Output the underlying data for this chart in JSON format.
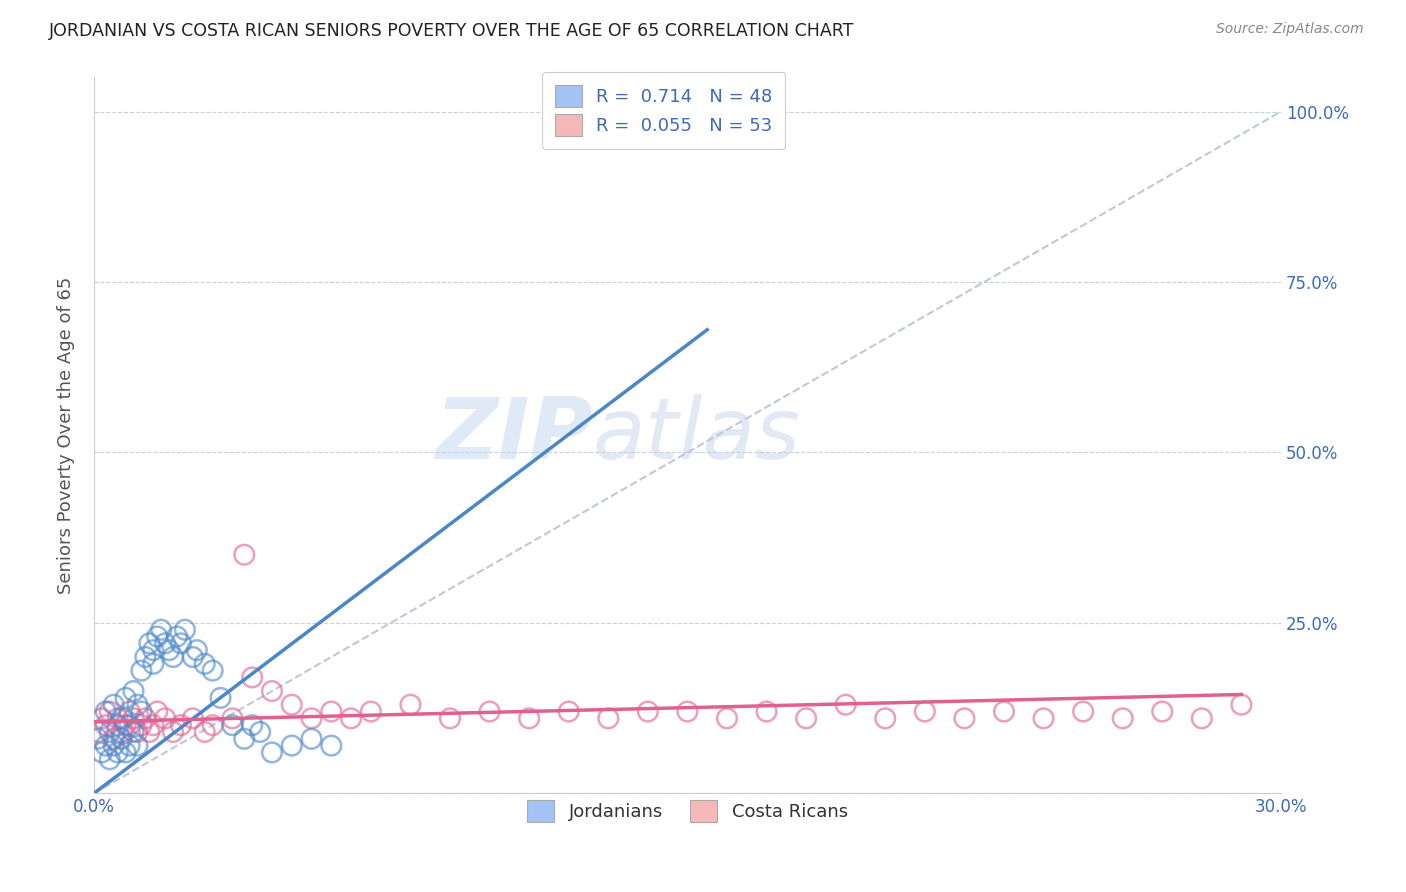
{
  "title": "JORDANIAN VS COSTA RICAN SENIORS POVERTY OVER THE AGE OF 65 CORRELATION CHART",
  "source": "Source: ZipAtlas.com",
  "ylabel": "Seniors Poverty Over the Age of 65",
  "xlim": [
    0.0,
    0.3
  ],
  "ylim": [
    0.0,
    1.05
  ],
  "xticks": [
    0.0,
    0.05,
    0.1,
    0.15,
    0.2,
    0.25,
    0.3
  ],
  "xtick_labels": [
    "0.0%",
    "",
    "",
    "",
    "",
    "",
    "30.0%"
  ],
  "yticks": [
    0.0,
    0.25,
    0.5,
    0.75,
    1.0
  ],
  "ytick_labels": [
    "",
    "25.0%",
    "50.0%",
    "75.0%",
    "100.0%"
  ],
  "jordanians_R": 0.714,
  "jordanians_N": 48,
  "costa_ricans_R": 0.055,
  "costa_ricans_N": 53,
  "blue_color": "#a4c2f4",
  "pink_color": "#f4b8b8",
  "blue_line_color": "#4a86c8",
  "pink_line_color": "#e06090",
  "diagonal_color": "#c0c8d8",
  "watermark_zip": "ZIP",
  "watermark_atlas": "atlas",
  "jordanians_x": [
    0.001,
    0.002,
    0.003,
    0.003,
    0.004,
    0.004,
    0.005,
    0.005,
    0.006,
    0.006,
    0.007,
    0.007,
    0.008,
    0.008,
    0.009,
    0.009,
    0.01,
    0.01,
    0.011,
    0.011,
    0.012,
    0.012,
    0.013,
    0.014,
    0.015,
    0.015,
    0.016,
    0.017,
    0.018,
    0.019,
    0.02,
    0.021,
    0.022,
    0.023,
    0.025,
    0.026,
    0.028,
    0.03,
    0.032,
    0.035,
    0.038,
    0.04,
    0.042,
    0.045,
    0.05,
    0.055,
    0.06,
    0.155
  ],
  "jordanians_y": [
    0.08,
    0.06,
    0.12,
    0.07,
    0.09,
    0.05,
    0.13,
    0.07,
    0.1,
    0.06,
    0.11,
    0.08,
    0.14,
    0.06,
    0.1,
    0.07,
    0.15,
    0.09,
    0.13,
    0.07,
    0.18,
    0.12,
    0.2,
    0.22,
    0.21,
    0.19,
    0.23,
    0.24,
    0.22,
    0.21,
    0.2,
    0.23,
    0.22,
    0.24,
    0.2,
    0.21,
    0.19,
    0.18,
    0.14,
    0.1,
    0.08,
    0.1,
    0.09,
    0.06,
    0.07,
    0.08,
    0.07,
    1.0
  ],
  "costa_ricans_x": [
    0.001,
    0.002,
    0.003,
    0.004,
    0.005,
    0.006,
    0.007,
    0.008,
    0.009,
    0.01,
    0.011,
    0.012,
    0.013,
    0.014,
    0.015,
    0.016,
    0.018,
    0.02,
    0.022,
    0.025,
    0.028,
    0.03,
    0.035,
    0.038,
    0.04,
    0.045,
    0.05,
    0.055,
    0.06,
    0.065,
    0.07,
    0.08,
    0.09,
    0.1,
    0.11,
    0.12,
    0.13,
    0.14,
    0.15,
    0.16,
    0.17,
    0.18,
    0.19,
    0.2,
    0.21,
    0.22,
    0.23,
    0.24,
    0.25,
    0.26,
    0.27,
    0.28,
    0.29
  ],
  "costa_ricans_y": [
    0.09,
    0.11,
    0.1,
    0.12,
    0.08,
    0.11,
    0.09,
    0.1,
    0.12,
    0.11,
    0.09,
    0.1,
    0.11,
    0.09,
    0.1,
    0.12,
    0.11,
    0.09,
    0.1,
    0.11,
    0.09,
    0.1,
    0.11,
    0.35,
    0.17,
    0.15,
    0.13,
    0.11,
    0.12,
    0.11,
    0.12,
    0.13,
    0.11,
    0.12,
    0.11,
    0.12,
    0.11,
    0.12,
    0.12,
    0.11,
    0.12,
    0.11,
    0.13,
    0.11,
    0.12,
    0.11,
    0.12,
    0.11,
    0.12,
    0.11,
    0.12,
    0.11,
    0.13
  ],
  "blue_line_x": [
    0.0,
    0.155
  ],
  "blue_line_y": [
    0.0,
    0.68
  ],
  "pink_line_x": [
    0.0,
    0.29
  ],
  "pink_line_y": [
    0.105,
    0.145
  ]
}
